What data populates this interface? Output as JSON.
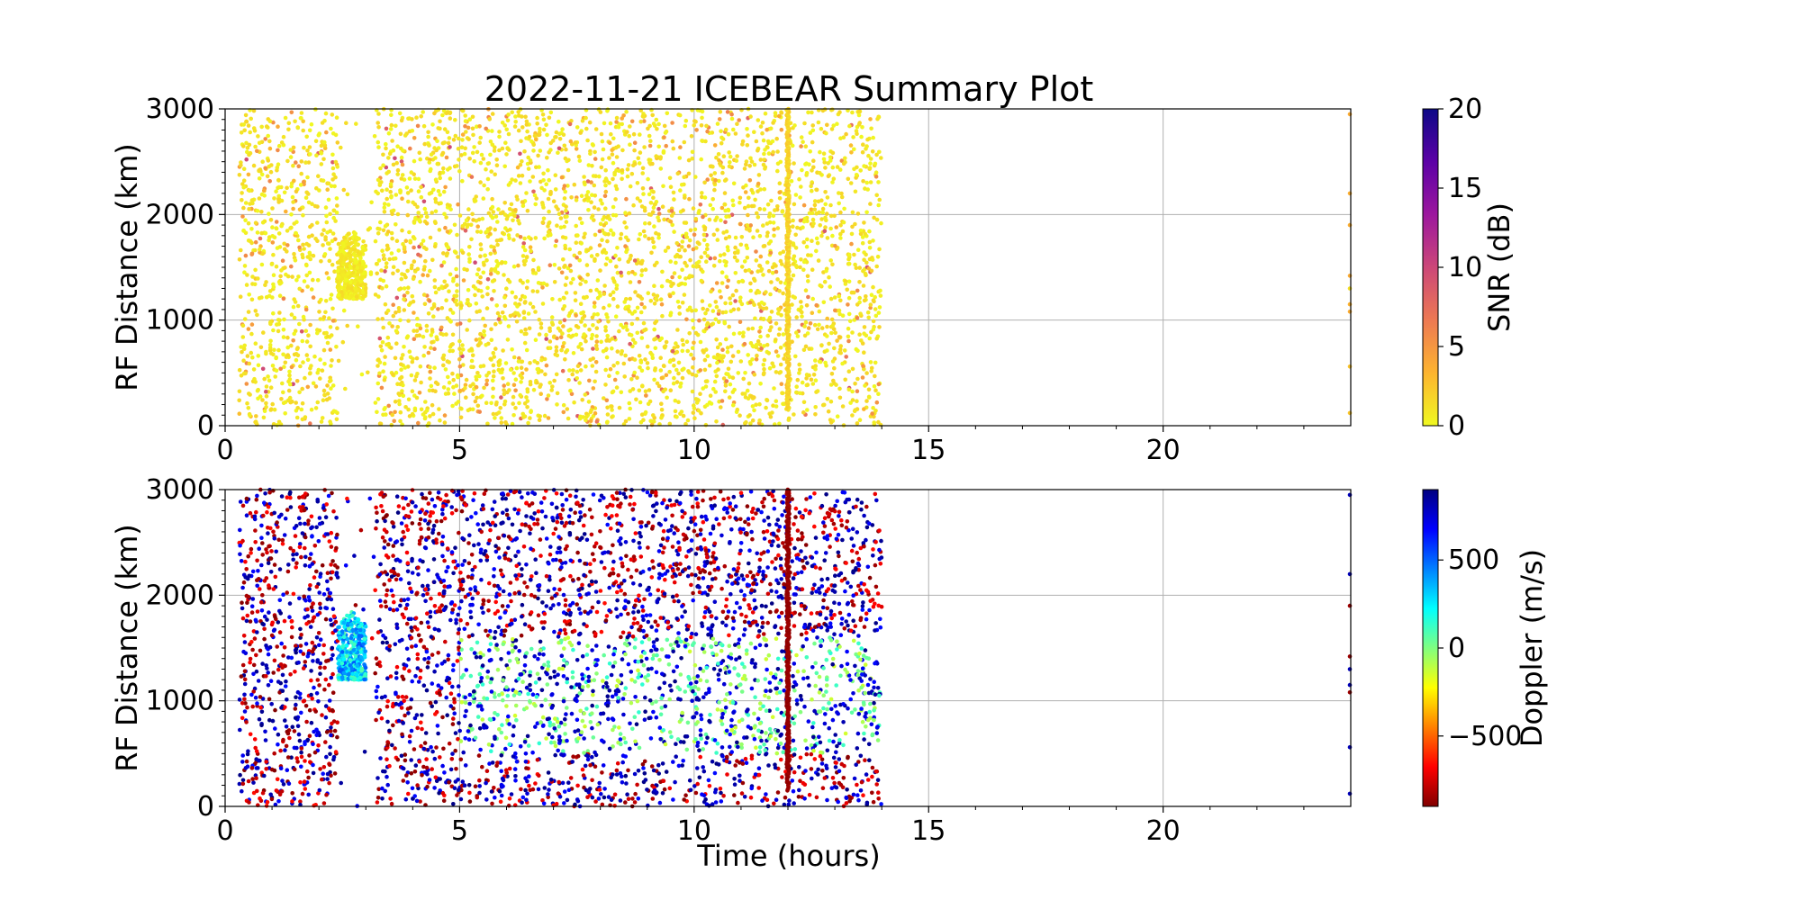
{
  "figure": {
    "title": "2022-11-21 ICEBEAR Summary Plot",
    "xlabel": "Time (hours)"
  },
  "chart_data": [
    {
      "type": "scatter",
      "name": "snr-panel",
      "ylabel": "RF Distance (km)",
      "xlim": [
        0,
        24
      ],
      "ylim": [
        0,
        3000
      ],
      "xticks": [
        0,
        5,
        10,
        15,
        20
      ],
      "yticks": [
        0,
        1000,
        2000,
        3000
      ],
      "grid": true,
      "colorbar": {
        "label": "SNR (dB)",
        "range": [
          0,
          20
        ],
        "ticks": [
          0,
          5,
          10,
          15,
          20
        ],
        "colormap": "plasma_r",
        "colors": [
          "#f0f921",
          "#fdb42f",
          "#ed7953",
          "#cc4778",
          "#9c179e",
          "#5c01a6",
          "#0d0887"
        ]
      },
      "data_extent": {
        "time_hours": [
          0.3,
          14.0
        ],
        "range_km": [
          0,
          3000
        ],
        "sparse_gap_hours": [
          2.4,
          3.0
        ],
        "cluster": {
          "time_hours": [
            2.4,
            3.0
          ],
          "range_km": [
            1200,
            1850
          ]
        },
        "streak": {
          "time_hours": 12.0,
          "range_km": [
            150,
            3000
          ]
        },
        "late_points_hours": 24.0
      }
    },
    {
      "type": "scatter",
      "name": "doppler-panel",
      "ylabel": "RF Distance (km)",
      "xlim": [
        0,
        24
      ],
      "ylim": [
        0,
        3000
      ],
      "xticks": [
        0,
        5,
        10,
        15,
        20
      ],
      "yticks": [
        0,
        1000,
        2000,
        3000
      ],
      "grid": true,
      "colorbar": {
        "label": "Doppler (m/s)",
        "range": [
          -900,
          900
        ],
        "ticks": [
          -500,
          0,
          500
        ],
        "tick_labels": [
          "−500",
          "0",
          "500"
        ],
        "colormap": "jet_r",
        "colors": [
          "#800000",
          "#ff0000",
          "#ff8000",
          "#ffff00",
          "#80ff80",
          "#00ffff",
          "#0080ff",
          "#0000ff",
          "#000080"
        ]
      },
      "data_extent": {
        "time_hours": [
          0.3,
          14.0
        ],
        "range_km": [
          0,
          3000
        ],
        "sparse_gap_hours": [
          2.4,
          3.0
        ],
        "cluster": {
          "time_hours": [
            2.4,
            3.0
          ],
          "range_km": [
            1200,
            1850
          ]
        },
        "streak": {
          "time_hours": 12.0,
          "range_km": [
            150,
            3000
          ]
        },
        "late_points_hours": 24.0
      }
    }
  ]
}
